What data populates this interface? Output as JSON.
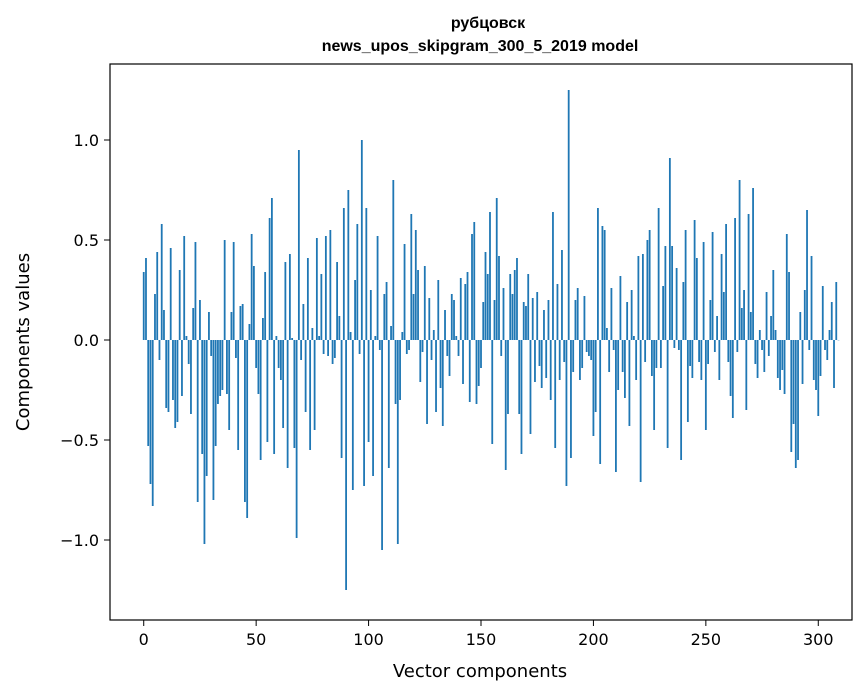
{
  "chart_data": {
    "type": "bar",
    "title": "рубцовск",
    "subtitle": "news_upos_skipgram_300_5_2019 model",
    "xlabel": "Vector components",
    "ylabel": "Components values",
    "xlim": [
      -15,
      315
    ],
    "ylim": [
      -1.4,
      1.38
    ],
    "xticks": [
      0,
      50,
      100,
      150,
      200,
      250,
      300
    ],
    "xtick_labels": [
      "0",
      "50",
      "100",
      "150",
      "200",
      "250",
      "300"
    ],
    "yticks": [
      -1.0,
      -0.5,
      0.0,
      0.5,
      1.0
    ],
    "ytick_labels": [
      "−1.0",
      "−0.5",
      "0.0",
      "0.5",
      "1.0"
    ],
    "grid": false,
    "color": "#1f77b4",
    "values": [
      0.34,
      0.41,
      -0.53,
      -0.72,
      -0.83,
      0.23,
      0.44,
      -0.1,
      0.58,
      0.15,
      -0.34,
      -0.36,
      0.46,
      -0.3,
      -0.44,
      -0.41,
      0.35,
      -0.28,
      0.52,
      0.02,
      -0.12,
      -0.37,
      0.16,
      0.49,
      -0.81,
      0.2,
      -0.57,
      -1.02,
      -0.68,
      0.14,
      -0.08,
      -0.8,
      -0.53,
      -0.32,
      -0.28,
      -0.25,
      0.5,
      -0.27,
      -0.45,
      0.14,
      0.49,
      -0.09,
      -0.55,
      0.17,
      0.18,
      -0.81,
      -0.89,
      0.08,
      0.53,
      0.37,
      -0.14,
      -0.27,
      -0.6,
      0.11,
      0.34,
      -0.51,
      0.61,
      0.71,
      -0.57,
      0.02,
      -0.14,
      -0.2,
      -0.44,
      0.39,
      -0.64,
      0.43,
      0.01,
      -0.54,
      -0.99,
      0.95,
      -0.1,
      0.18,
      -0.36,
      0.41,
      -0.55,
      0.06,
      -0.45,
      0.51,
      0.02,
      0.33,
      -0.07,
      0.52,
      -0.08,
      0.55,
      -0.12,
      -0.09,
      0.39,
      0.12,
      -0.59,
      0.66,
      -1.25,
      0.75,
      0.04,
      -0.75,
      0.3,
      0.58,
      -0.07,
      1.0,
      -0.73,
      0.66,
      -0.51,
      0.25,
      -0.68,
      0.02,
      0.52,
      -0.05,
      -1.05,
      0.23,
      0.29,
      -0.64,
      0.07,
      0.8,
      -0.32,
      -1.02,
      -0.3,
      0.04,
      0.48,
      -0.07,
      -0.05,
      0.63,
      0.23,
      0.55,
      0.35,
      -0.21,
      -0.06,
      0.37,
      -0.42,
      0.21,
      -0.1,
      0.05,
      -0.36,
      0.3,
      -0.24,
      -0.43,
      0.15,
      -0.08,
      -0.18,
      0.23,
      0.2,
      0.02,
      -0.08,
      0.31,
      -0.22,
      0.28,
      0.34,
      -0.31,
      0.53,
      0.59,
      -0.32,
      -0.23,
      -0.14,
      0.19,
      0.44,
      0.33,
      0.64,
      -0.52,
      0.2,
      0.71,
      0.42,
      -0.08,
      0.26,
      -0.65,
      -0.37,
      0.33,
      0.23,
      0.35,
      0.41,
      -0.37,
      -0.57,
      0.19,
      0.17,
      0.33,
      -0.47,
      0.21,
      -0.21,
      0.24,
      -0.13,
      -0.24,
      0.15,
      -0.19,
      0.2,
      -0.3,
      0.64,
      -0.54,
      0.28,
      -0.2,
      0.45,
      -0.11,
      -0.73,
      1.25,
      -0.59,
      -0.16,
      0.2,
      0.26,
      -0.2,
      -0.14,
      0.22,
      -0.06,
      -0.08,
      -0.1,
      -0.48,
      -0.36,
      0.66,
      -0.62,
      0.57,
      0.55,
      0.06,
      -0.16,
      0.26,
      -0.05,
      -0.66,
      -0.25,
      0.32,
      -0.16,
      -0.29,
      0.19,
      -0.43,
      0.25,
      0.02,
      -0.2,
      0.42,
      -0.71,
      0.43,
      -0.11,
      0.5,
      0.55,
      -0.18,
      -0.45,
      -0.14,
      0.66,
      -0.14,
      0.27,
      0.47,
      -0.54,
      0.91,
      0.47,
      -0.04,
      0.36,
      -0.05,
      -0.6,
      0.29,
      0.55,
      -0.41,
      -0.13,
      -0.19,
      0.6,
      0.41,
      -0.11,
      -0.2,
      0.49,
      -0.45,
      -0.12,
      0.2,
      0.54,
      -0.06,
      0.12,
      -0.2,
      0.43,
      0.24,
      0.58,
      -0.11,
      -0.28,
      -0.39,
      0.61,
      -0.06,
      0.8,
      0.16,
      0.25,
      -0.35,
      0.63,
      0.14,
      0.76,
      -0.12,
      -0.19,
      0.05,
      -0.05,
      -0.16,
      0.24,
      -0.08,
      0.12,
      0.35,
      0.05,
      -0.19,
      -0.25,
      -0.15,
      -0.27,
      0.53,
      0.34,
      -0.56,
      -0.42,
      -0.64,
      -0.6,
      0.14,
      -0.22,
      0.25,
      0.65,
      -0.05,
      0.42,
      -0.2,
      -0.25,
      -0.38,
      -0.18,
      0.27,
      -0.05,
      -0.1,
      0.05,
      0.19,
      -0.24,
      0.29,
      0.0
    ]
  }
}
